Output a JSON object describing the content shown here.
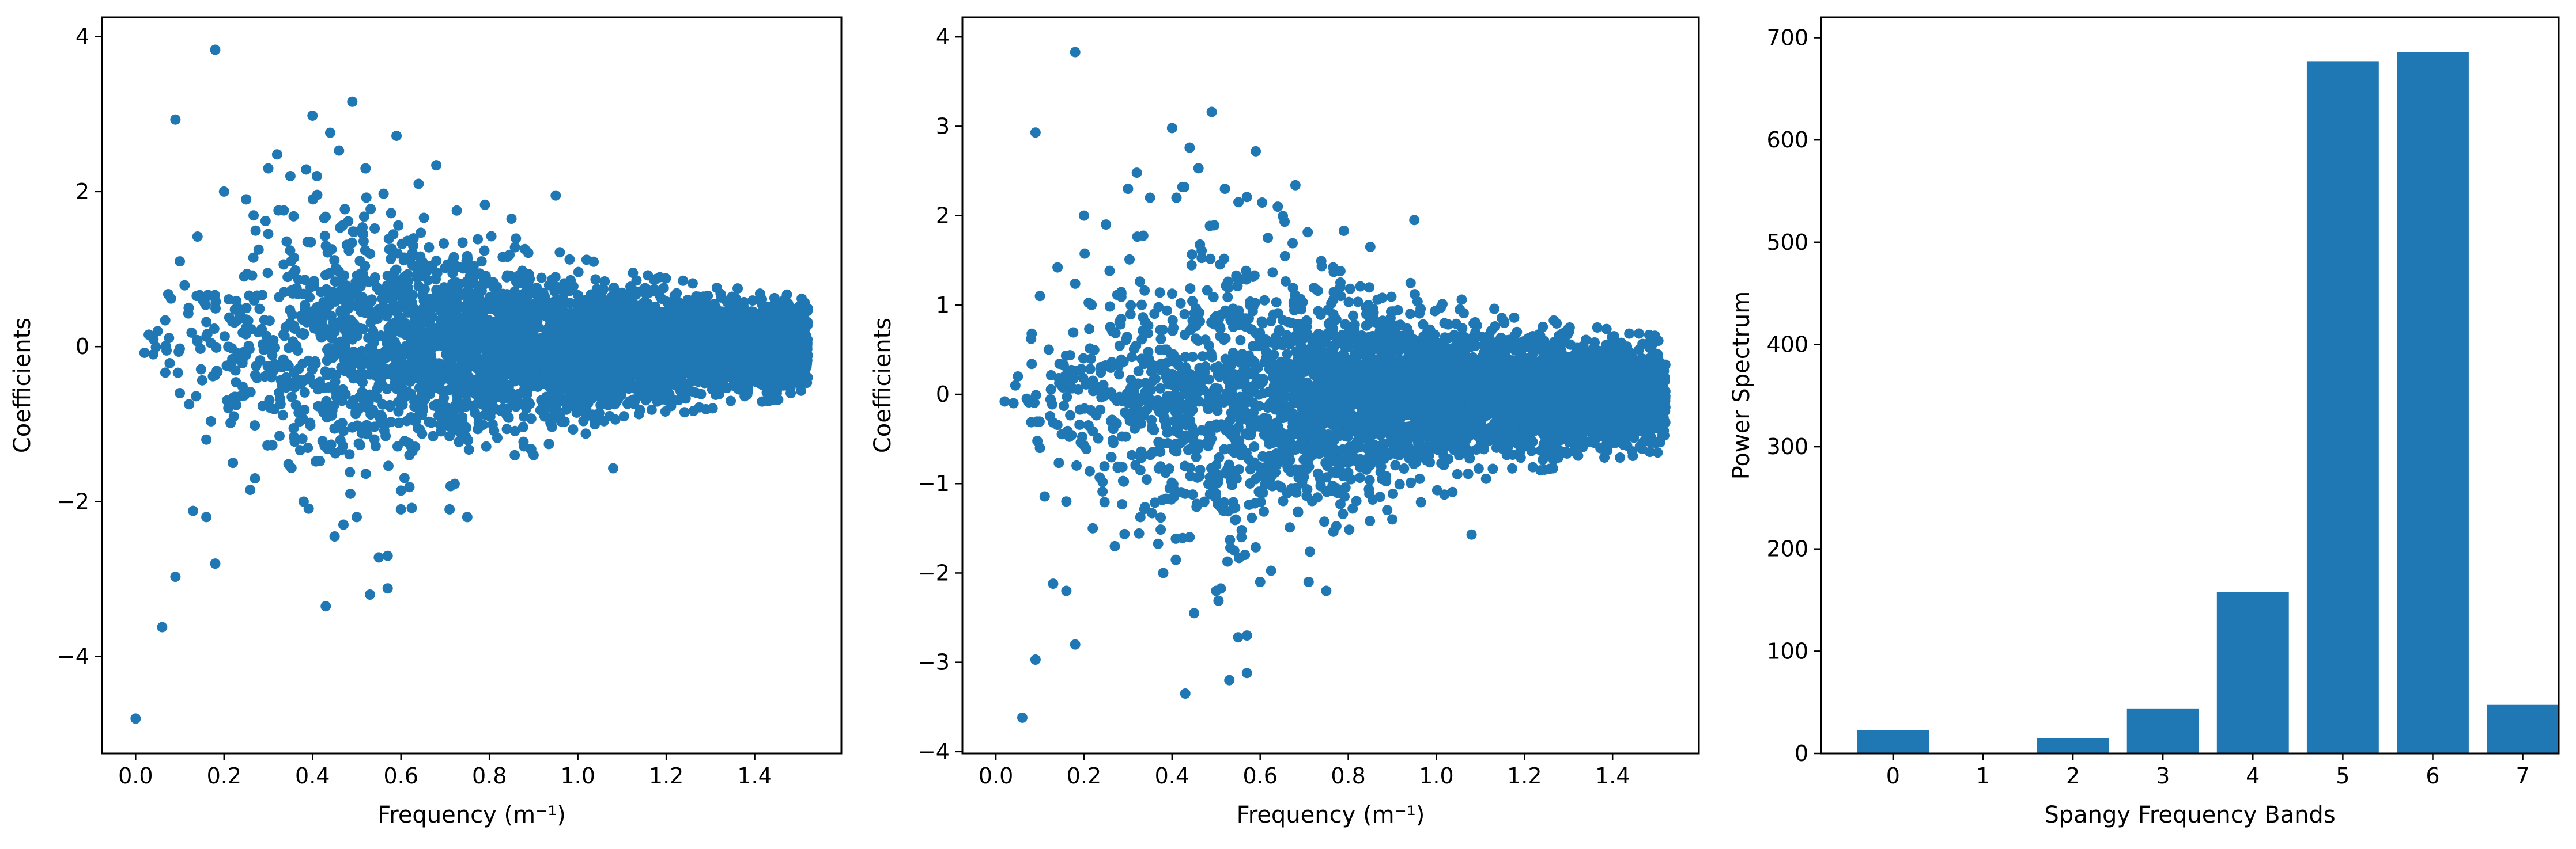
{
  "chart_data": [
    {
      "type": "scatter",
      "title": "",
      "xlabel": "Frequency (m⁻¹)",
      "ylabel": "Coefficients",
      "xlim": [
        -0.076,
        1.596
      ],
      "ylim": [
        -5.25,
        4.25
      ],
      "xticks": [
        0.0,
        0.2,
        0.4,
        0.6,
        0.8,
        1.0,
        1.2,
        1.4
      ],
      "xtick_labels": [
        "0.0",
        "0.2",
        "0.4",
        "0.6",
        "0.8",
        "1.0",
        "1.2",
        "1.4"
      ],
      "yticks": [
        -4,
        -2,
        0,
        2,
        4
      ],
      "ytick_labels": [
        "−4",
        "−2",
        "0",
        "2",
        "4"
      ],
      "marker_color": "#1f77b4",
      "grid": false,
      "points": [
        [
          0.0,
          -4.8
        ],
        [
          0.06,
          -3.62
        ],
        [
          0.09,
          -2.97
        ],
        [
          0.09,
          2.93
        ],
        [
          0.18,
          3.83
        ],
        [
          0.18,
          -2.8
        ],
        [
          0.13,
          -2.12
        ],
        [
          0.16,
          -2.2
        ],
        [
          0.4,
          2.98
        ],
        [
          0.44,
          2.76
        ],
        [
          0.49,
          3.16
        ],
        [
          0.59,
          2.72
        ],
        [
          0.43,
          -3.35
        ],
        [
          0.53,
          -3.2
        ],
        [
          0.57,
          -3.12
        ],
        [
          0.55,
          -2.72
        ],
        [
          0.57,
          -2.7
        ],
        [
          0.79,
          1.83
        ],
        [
          0.95,
          1.95
        ],
        [
          1.08,
          -1.57
        ],
        [
          0.02,
          -0.08
        ],
        [
          0.04,
          -0.1
        ],
        [
          0.05,
          0.2
        ],
        [
          0.07,
          -0.05
        ],
        [
          0.08,
          0.62
        ],
        [
          0.1,
          1.1
        ],
        [
          0.1,
          -0.6
        ],
        [
          0.12,
          0.5
        ],
        [
          0.14,
          1.42
        ],
        [
          0.16,
          -1.2
        ],
        [
          0.2,
          2.0
        ],
        [
          0.22,
          -1.5
        ],
        [
          0.25,
          1.9
        ],
        [
          0.27,
          -1.7
        ],
        [
          0.3,
          2.3
        ],
        [
          0.32,
          2.48
        ],
        [
          0.35,
          2.2
        ],
        [
          0.38,
          -2.0
        ],
        [
          0.41,
          2.2
        ],
        [
          0.45,
          -2.45
        ],
        [
          0.46,
          2.53
        ],
        [
          0.5,
          -2.2
        ],
        [
          0.52,
          2.3
        ],
        [
          0.6,
          -2.1
        ],
        [
          0.64,
          2.1
        ],
        [
          0.68,
          2.34
        ],
        [
          0.71,
          -2.1
        ],
        [
          0.75,
          -2.2
        ],
        [
          0.85,
          1.65
        ],
        [
          0.9,
          -1.4
        ]
      ],
      "cloud": {
        "count": 5200,
        "x_range": [
          0.0,
          1.52
        ],
        "envelope": [
          [
            0.0,
            0.45
          ],
          [
            0.1,
            0.8
          ],
          [
            0.2,
            1.1
          ],
          [
            0.3,
            1.3
          ],
          [
            0.4,
            1.45
          ],
          [
            0.5,
            1.45
          ],
          [
            0.6,
            1.35
          ],
          [
            0.7,
            1.15
          ],
          [
            0.8,
            0.95
          ],
          [
            0.9,
            0.82
          ],
          [
            1.0,
            0.72
          ],
          [
            1.1,
            0.62
          ],
          [
            1.2,
            0.55
          ],
          [
            1.3,
            0.5
          ],
          [
            1.4,
            0.45
          ],
          [
            1.52,
            0.4
          ]
        ],
        "density_growth": 2.2,
        "seed": 12345
      }
    },
    {
      "type": "scatter",
      "title": "",
      "xlabel": "Frequency (m⁻¹)",
      "ylabel": "Coefficients",
      "xlim": [
        -0.076,
        1.596
      ],
      "ylim": [
        -4.02,
        4.22
      ],
      "xticks": [
        0.0,
        0.2,
        0.4,
        0.6,
        0.8,
        1.0,
        1.2,
        1.4
      ],
      "xtick_labels": [
        "0.0",
        "0.2",
        "0.4",
        "0.6",
        "0.8",
        "1.0",
        "1.2",
        "1.4"
      ],
      "yticks": [
        -4,
        -3,
        -2,
        -1,
        0,
        1,
        2,
        3,
        4
      ],
      "ytick_labels": [
        "−4",
        "−3",
        "−2",
        "−1",
        "0",
        "1",
        "2",
        "3",
        "4"
      ],
      "marker_color": "#1f77b4",
      "grid": false,
      "points": [
        [
          0.06,
          -3.62
        ],
        [
          0.09,
          -2.97
        ],
        [
          0.09,
          2.93
        ],
        [
          0.18,
          3.83
        ],
        [
          0.18,
          -2.8
        ],
        [
          0.13,
          -2.12
        ],
        [
          0.16,
          -2.2
        ],
        [
          0.4,
          2.98
        ],
        [
          0.44,
          2.76
        ],
        [
          0.49,
          3.16
        ],
        [
          0.59,
          2.72
        ],
        [
          0.43,
          -3.35
        ],
        [
          0.53,
          -3.2
        ],
        [
          0.57,
          -3.12
        ],
        [
          0.55,
          -2.72
        ],
        [
          0.57,
          -2.7
        ],
        [
          0.79,
          1.83
        ],
        [
          0.95,
          1.95
        ],
        [
          1.08,
          -1.57
        ],
        [
          0.02,
          -0.08
        ],
        [
          0.04,
          -0.1
        ],
        [
          0.05,
          0.2
        ],
        [
          0.07,
          -0.05
        ],
        [
          0.08,
          0.62
        ],
        [
          0.1,
          1.1
        ],
        [
          0.1,
          -0.6
        ],
        [
          0.12,
          0.5
        ],
        [
          0.14,
          1.42
        ],
        [
          0.16,
          -1.2
        ],
        [
          0.2,
          2.0
        ],
        [
          0.22,
          -1.5
        ],
        [
          0.25,
          1.9
        ],
        [
          0.27,
          -1.7
        ],
        [
          0.3,
          2.3
        ],
        [
          0.32,
          2.48
        ],
        [
          0.35,
          2.2
        ],
        [
          0.38,
          -2.0
        ],
        [
          0.41,
          2.2
        ],
        [
          0.45,
          -2.45
        ],
        [
          0.46,
          2.53
        ],
        [
          0.5,
          -2.2
        ],
        [
          0.52,
          2.3
        ],
        [
          0.6,
          -2.1
        ],
        [
          0.64,
          2.1
        ],
        [
          0.68,
          2.34
        ],
        [
          0.71,
          -2.1
        ],
        [
          0.75,
          -2.2
        ],
        [
          0.85,
          1.65
        ],
        [
          0.9,
          -1.4
        ]
      ],
      "cloud": {
        "count": 5200,
        "x_range": [
          0.0,
          1.52
        ],
        "envelope": [
          [
            0.0,
            0.45
          ],
          [
            0.1,
            0.8
          ],
          [
            0.2,
            1.1
          ],
          [
            0.3,
            1.3
          ],
          [
            0.4,
            1.45
          ],
          [
            0.5,
            1.45
          ],
          [
            0.6,
            1.35
          ],
          [
            0.7,
            1.15
          ],
          [
            0.8,
            0.95
          ],
          [
            0.9,
            0.82
          ],
          [
            1.0,
            0.72
          ],
          [
            1.1,
            0.62
          ],
          [
            1.2,
            0.55
          ],
          [
            1.3,
            0.5
          ],
          [
            1.4,
            0.45
          ],
          [
            1.52,
            0.4
          ]
        ],
        "density_growth": 2.2,
        "seed": 12345
      }
    },
    {
      "type": "bar",
      "title": "",
      "xlabel": "Spangy Frequency Bands",
      "ylabel": "Power Spectrum",
      "categories": [
        "0",
        "1",
        "2",
        "3",
        "4",
        "5",
        "6",
        "7"
      ],
      "values": [
        23,
        0,
        15,
        44,
        158,
        677,
        686,
        48
      ],
      "xlim": [
        -0.8,
        7.4
      ],
      "ylim": [
        0,
        720
      ],
      "yticks": [
        0,
        100,
        200,
        300,
        400,
        500,
        600,
        700
      ],
      "ytick_labels": [
        "0",
        "100",
        "200",
        "300",
        "400",
        "500",
        "600",
        "700"
      ],
      "bar_width": 0.8,
      "bar_color": "#1f77b4",
      "grid": false
    }
  ]
}
